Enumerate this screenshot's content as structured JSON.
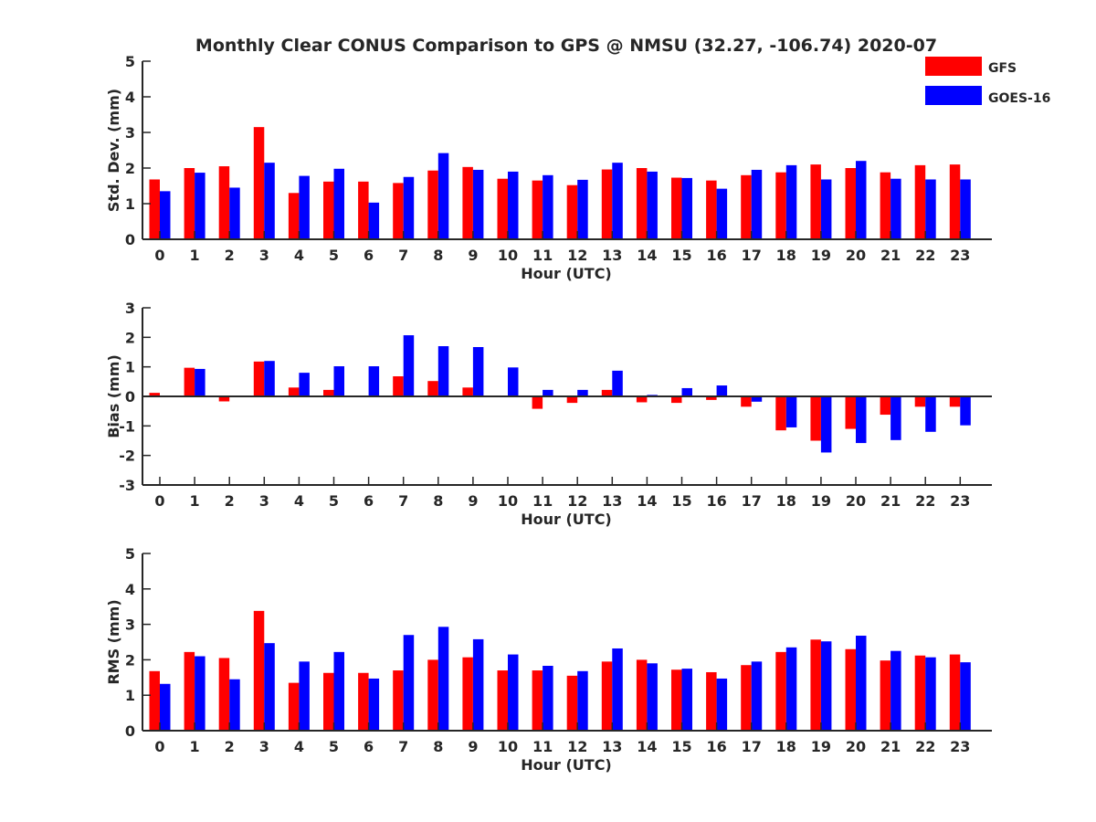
{
  "figure": {
    "title": "Monthly Clear CONUS Comparison to GPS @ NMSU (32.27, -106.74) 2020-07",
    "legend": [
      {
        "name": "GFS",
        "color": "#ff0000"
      },
      {
        "name": "GOES-16",
        "color": "#0000ff"
      }
    ],
    "legend_position": "top-right"
  },
  "chart_data": [
    {
      "type": "bar",
      "xlabel": "Hour (UTC)",
      "ylabel": "Std. Dev. (mm)",
      "ylim": [
        0,
        5
      ],
      "yticks": [
        0,
        1,
        2,
        3,
        4,
        5
      ],
      "categories": [
        "0",
        "1",
        "2",
        "3",
        "4",
        "5",
        "6",
        "7",
        "8",
        "9",
        "10",
        "11",
        "12",
        "13",
        "14",
        "15",
        "16",
        "17",
        "18",
        "19",
        "20",
        "21",
        "22",
        "23"
      ],
      "series": [
        {
          "name": "GFS",
          "color": "#ff0000",
          "values": [
            1.68,
            2.0,
            2.05,
            3.15,
            1.3,
            1.62,
            1.62,
            1.58,
            1.93,
            2.03,
            1.7,
            1.65,
            1.52,
            1.96,
            2.0,
            1.73,
            1.65,
            1.8,
            1.88,
            2.1,
            2.0,
            1.88,
            2.08,
            2.1
          ]
        },
        {
          "name": "GOES-16",
          "color": "#0000ff",
          "values": [
            1.35,
            1.87,
            1.45,
            2.15,
            1.78,
            1.98,
            1.03,
            1.75,
            2.42,
            1.95,
            1.9,
            1.8,
            1.67,
            2.15,
            1.9,
            1.72,
            1.42,
            1.95,
            2.08,
            1.68,
            2.2,
            1.7,
            1.68,
            1.68
          ]
        }
      ]
    },
    {
      "type": "bar",
      "xlabel": "Hour (UTC)",
      "ylabel": "Bias (mm)",
      "ylim": [
        -3,
        3
      ],
      "yticks": [
        -3,
        -2,
        -1,
        0,
        1,
        2,
        3
      ],
      "zero_line": true,
      "categories": [
        "0",
        "1",
        "2",
        "3",
        "4",
        "5",
        "6",
        "7",
        "8",
        "9",
        "10",
        "11",
        "12",
        "13",
        "14",
        "15",
        "16",
        "17",
        "18",
        "19",
        "20",
        "21",
        "22",
        "23"
      ],
      "series": [
        {
          "name": "GFS",
          "color": "#ff0000",
          "values": [
            0.12,
            0.97,
            -0.17,
            1.18,
            0.3,
            0.22,
            0.03,
            0.68,
            0.52,
            0.3,
            0.03,
            -0.42,
            -0.22,
            0.22,
            -0.2,
            -0.22,
            -0.12,
            -0.35,
            -1.15,
            -1.5,
            -1.1,
            -0.62,
            -0.35,
            -0.35
          ]
        },
        {
          "name": "GOES-16",
          "color": "#0000ff",
          "values": [
            0.0,
            0.93,
            0.0,
            1.2,
            0.8,
            1.02,
            1.02,
            2.07,
            1.7,
            1.67,
            0.98,
            0.22,
            0.22,
            0.87,
            0.05,
            0.28,
            0.37,
            -0.18,
            -1.05,
            -1.9,
            -1.58,
            -1.48,
            -1.2,
            -0.98
          ]
        }
      ]
    },
    {
      "type": "bar",
      "xlabel": "Hour (UTC)",
      "ylabel": "RMS (mm)",
      "ylim": [
        0,
        5
      ],
      "yticks": [
        0,
        1,
        2,
        3,
        4,
        5
      ],
      "categories": [
        "0",
        "1",
        "2",
        "3",
        "4",
        "5",
        "6",
        "7",
        "8",
        "9",
        "10",
        "11",
        "12",
        "13",
        "14",
        "15",
        "16",
        "17",
        "18",
        "19",
        "20",
        "21",
        "22",
        "23"
      ],
      "series": [
        {
          "name": "GFS",
          "color": "#ff0000",
          "values": [
            1.68,
            2.22,
            2.05,
            3.38,
            1.35,
            1.63,
            1.63,
            1.7,
            2.0,
            2.07,
            1.7,
            1.7,
            1.55,
            1.95,
            2.0,
            1.72,
            1.65,
            1.85,
            2.22,
            2.57,
            2.3,
            1.98,
            2.12,
            2.15
          ]
        },
        {
          "name": "GOES-16",
          "color": "#0000ff",
          "values": [
            1.32,
            2.1,
            1.45,
            2.47,
            1.95,
            2.22,
            1.47,
            2.7,
            2.93,
            2.58,
            2.15,
            1.83,
            1.68,
            2.32,
            1.9,
            1.75,
            1.47,
            1.95,
            2.35,
            2.52,
            2.68,
            2.25,
            2.07,
            1.93
          ]
        }
      ]
    }
  ]
}
